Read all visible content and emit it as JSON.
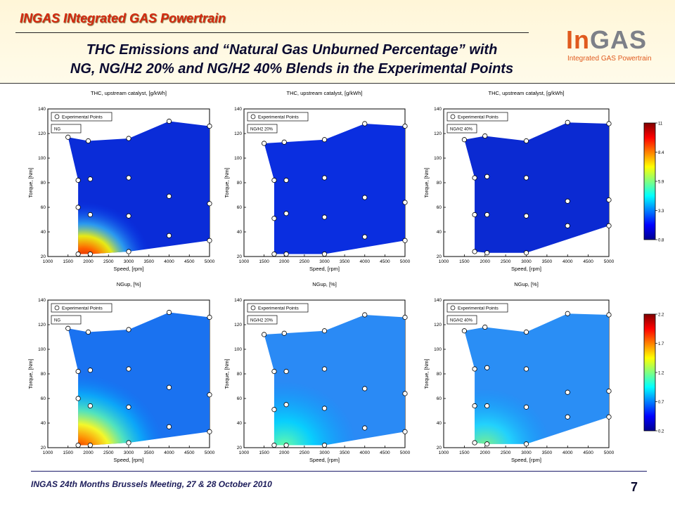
{
  "header": {
    "title": "INGAS INtegrated GAS Powertrain",
    "slide_title_line1": "THC Emissions and “Natural Gas Unburned Percentage” with",
    "slide_title_line2": "NG, NG/H2 20% and NG/H2 40% Blends in the Experimental Points"
  },
  "logo": {
    "main_in": "In",
    "main_gas": "GAS",
    "sub": "Integrated GAS Powertrain"
  },
  "footer": {
    "text": "INGAS 24th Months Brussels Meeting, 27 & 28 October 2010",
    "page_number": "7"
  },
  "colors": {
    "title_red": "#d42a10",
    "navy": "#0a0a30"
  },
  "chart_data": [
    {
      "type": "heatmap",
      "title": "THC, upstream catalyst, [g/kWh]",
      "blend_label": "NG",
      "xlabel": "Speed, [rpm]",
      "ylabel": "Torque, [Nm]",
      "xlim": [
        1000,
        5000
      ],
      "ylim": [
        20,
        140
      ],
      "xticks": [
        "1000",
        "1500",
        "2000",
        "2500",
        "3000",
        "3500",
        "4000",
        "4500",
        "5000"
      ],
      "yticks": [
        "20",
        "40",
        "60",
        "80",
        "100",
        "120",
        "140"
      ],
      "legend_label": "Experimental Points",
      "colorscale": {
        "min": 0.8,
        "max": 11,
        "ticks": [
          "11",
          "8.4",
          "5.9",
          "3.3",
          "0.8"
        ]
      },
      "points": [
        [
          1500,
          117
        ],
        [
          2000,
          114
        ],
        [
          3000,
          116
        ],
        [
          4000,
          130
        ],
        [
          5000,
          126
        ],
        [
          1750,
          82
        ],
        [
          2050,
          83
        ],
        [
          3000,
          84
        ],
        [
          4000,
          69
        ],
        [
          5000,
          63
        ],
        [
          1750,
          60
        ],
        [
          2050,
          54
        ],
        [
          3000,
          53
        ],
        [
          4000,
          37
        ],
        [
          5000,
          33
        ],
        [
          1750,
          22
        ],
        [
          2050,
          22
        ],
        [
          3000,
          24
        ]
      ]
    },
    {
      "type": "heatmap",
      "title": "THC, upstream catalyst, [g/kWh]",
      "blend_label": "NG/H2 20%",
      "xlabel": "Speed, [rpm]",
      "ylabel": "Torque, [Nm]",
      "xlim": [
        1000,
        5000
      ],
      "ylim": [
        20,
        140
      ],
      "xticks": [
        "1000",
        "1500",
        "2000",
        "2500",
        "3000",
        "3500",
        "4000",
        "4500",
        "5000"
      ],
      "yticks": [
        "20",
        "40",
        "60",
        "80",
        "100",
        "120",
        "140"
      ],
      "legend_label": "Experimental Points",
      "colorscale": {
        "min": 0.8,
        "max": 11,
        "ticks": [
          "11",
          "8.4",
          "5.9",
          "3.3",
          "0.8"
        ]
      },
      "points": [
        [
          1500,
          112
        ],
        [
          2000,
          113
        ],
        [
          3000,
          115
        ],
        [
          4000,
          128
        ],
        [
          5000,
          126
        ],
        [
          1750,
          82
        ],
        [
          2050,
          82
        ],
        [
          3000,
          84
        ],
        [
          4000,
          68
        ],
        [
          5000,
          64
        ],
        [
          1750,
          51
        ],
        [
          2050,
          55
        ],
        [
          3000,
          52
        ],
        [
          4000,
          36
        ],
        [
          5000,
          33
        ],
        [
          1750,
          22
        ],
        [
          2050,
          22
        ],
        [
          3000,
          22
        ]
      ]
    },
    {
      "type": "heatmap",
      "title": "THC, upstream catalyst, [g/kWh]",
      "blend_label": "NG/H2 40%",
      "xlabel": "Speed, [rpm]",
      "ylabel": "Torque, [Nm]",
      "xlim": [
        1000,
        5000
      ],
      "ylim": [
        20,
        140
      ],
      "xticks": [
        "1000",
        "1500",
        "2000",
        "2500",
        "3000",
        "3500",
        "4000",
        "4500",
        "5000"
      ],
      "yticks": [
        "20",
        "40",
        "60",
        "80",
        "100",
        "120",
        "140"
      ],
      "legend_label": "Experimental Points",
      "colorscale": {
        "min": 0.8,
        "max": 11,
        "ticks": [
          "11",
          "8.4",
          "5.9",
          "3.3",
          "0.8"
        ]
      },
      "points": [
        [
          1500,
          115
        ],
        [
          2000,
          118
        ],
        [
          3000,
          114
        ],
        [
          4000,
          129
        ],
        [
          5000,
          128
        ],
        [
          1750,
          84
        ],
        [
          2050,
          85
        ],
        [
          3000,
          84
        ],
        [
          4000,
          65
        ],
        [
          5000,
          66
        ],
        [
          1750,
          54
        ],
        [
          2050,
          54
        ],
        [
          3000,
          53
        ],
        [
          4000,
          45
        ],
        [
          5000,
          45
        ],
        [
          1750,
          24
        ],
        [
          2050,
          23
        ],
        [
          3000,
          23
        ]
      ]
    },
    {
      "type": "heatmap",
      "title": "NGup, [%]",
      "blend_label": "NG",
      "xlabel": "Speed, [rpm]",
      "ylabel": "Torque, [Nm]",
      "xlim": [
        1000,
        5000
      ],
      "ylim": [
        20,
        140
      ],
      "xticks": [
        "1000",
        "1500",
        "2000",
        "2500",
        "3000",
        "3500",
        "4000",
        "4500",
        "5000"
      ],
      "yticks": [
        "20",
        "40",
        "60",
        "80",
        "100",
        "120",
        "140"
      ],
      "legend_label": "Experimental Points",
      "colorscale": {
        "min": 0.2,
        "max": 2.2,
        "ticks": [
          "2.2",
          "1.7",
          "1.2",
          "0.7",
          "0.2"
        ]
      },
      "points": [
        [
          1500,
          117
        ],
        [
          2000,
          114
        ],
        [
          3000,
          116
        ],
        [
          4000,
          130
        ],
        [
          5000,
          126
        ],
        [
          1750,
          82
        ],
        [
          2050,
          83
        ],
        [
          3000,
          84
        ],
        [
          4000,
          69
        ],
        [
          5000,
          63
        ],
        [
          1750,
          60
        ],
        [
          2050,
          54
        ],
        [
          3000,
          53
        ],
        [
          4000,
          37
        ],
        [
          5000,
          33
        ],
        [
          1750,
          22
        ],
        [
          2050,
          22
        ],
        [
          3000,
          24
        ]
      ]
    },
    {
      "type": "heatmap",
      "title": "NGup, [%]",
      "blend_label": "NG/H2 20%",
      "xlabel": "Speed, [rpm]",
      "ylabel": "Torque, [Nm]",
      "xlim": [
        1000,
        5000
      ],
      "ylim": [
        20,
        140
      ],
      "xticks": [
        "1000",
        "1500",
        "2000",
        "2500",
        "3000",
        "3500",
        "4000",
        "4500",
        "5000"
      ],
      "yticks": [
        "20",
        "40",
        "60",
        "80",
        "100",
        "120",
        "140"
      ],
      "legend_label": "Experimental Points",
      "colorscale": {
        "min": 0.2,
        "max": 2.2,
        "ticks": [
          "2.2",
          "1.7",
          "1.2",
          "0.7",
          "0.2"
        ]
      },
      "points": [
        [
          1500,
          112
        ],
        [
          2000,
          113
        ],
        [
          3000,
          115
        ],
        [
          4000,
          128
        ],
        [
          5000,
          126
        ],
        [
          1750,
          82
        ],
        [
          2050,
          82
        ],
        [
          3000,
          84
        ],
        [
          4000,
          68
        ],
        [
          5000,
          64
        ],
        [
          1750,
          51
        ],
        [
          2050,
          55
        ],
        [
          3000,
          52
        ],
        [
          4000,
          36
        ],
        [
          5000,
          33
        ],
        [
          1750,
          22
        ],
        [
          2050,
          22
        ],
        [
          3000,
          22
        ]
      ]
    },
    {
      "type": "heatmap",
      "title": "NGup, [%]",
      "blend_label": "NG/H2 40%",
      "xlabel": "Speed, [rpm]",
      "ylabel": "Torque, [Nm]",
      "xlim": [
        1000,
        5000
      ],
      "ylim": [
        20,
        140
      ],
      "xticks": [
        "1000",
        "1500",
        "2000",
        "2500",
        "3000",
        "3500",
        "4000",
        "4500",
        "5000"
      ],
      "yticks": [
        "20",
        "40",
        "60",
        "80",
        "100",
        "120",
        "140"
      ],
      "legend_label": "Experimental Points",
      "colorscale": {
        "min": 0.2,
        "max": 2.2,
        "ticks": [
          "2.2",
          "1.7",
          "1.2",
          "0.7",
          "0.2"
        ]
      },
      "points": [
        [
          1500,
          115
        ],
        [
          2000,
          118
        ],
        [
          3000,
          114
        ],
        [
          4000,
          129
        ],
        [
          5000,
          128
        ],
        [
          1750,
          84
        ],
        [
          2050,
          85
        ],
        [
          3000,
          84
        ],
        [
          4000,
          65
        ],
        [
          5000,
          66
        ],
        [
          1750,
          54
        ],
        [
          2050,
          54
        ],
        [
          3000,
          53
        ],
        [
          4000,
          45
        ],
        [
          5000,
          45
        ],
        [
          1750,
          24
        ],
        [
          2050,
          23
        ],
        [
          3000,
          23
        ]
      ]
    }
  ]
}
